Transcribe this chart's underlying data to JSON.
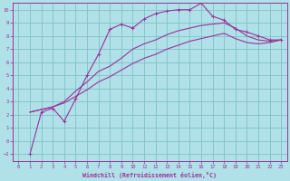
{
  "bg_color": "#b0e0e8",
  "grid_color": "#80c0c8",
  "line_color": "#993399",
  "xlabel": "Windchill (Refroidissement éolien,°C)",
  "xlim": [
    -0.5,
    23.5
  ],
  "ylim": [
    -1.5,
    10.5
  ],
  "xticks": [
    0,
    1,
    2,
    3,
    4,
    5,
    6,
    7,
    8,
    9,
    10,
    11,
    12,
    13,
    14,
    15,
    16,
    17,
    18,
    19,
    20,
    21,
    22,
    23
  ],
  "yticks": [
    -1,
    0,
    1,
    2,
    3,
    4,
    5,
    6,
    7,
    8,
    9,
    10
  ],
  "line1_x": [
    1,
    2,
    3,
    4,
    5,
    6,
    7,
    8,
    9,
    10,
    11,
    12,
    13,
    14,
    15,
    16,
    17,
    18,
    19,
    20,
    21,
    22,
    23
  ],
  "line1_y": [
    -1.0,
    2.2,
    2.5,
    1.5,
    3.2,
    5.0,
    6.6,
    8.5,
    8.9,
    8.6,
    9.3,
    9.7,
    9.9,
    10.0,
    10.0,
    10.5,
    9.5,
    9.2,
    8.5,
    8.3,
    8.0,
    7.7,
    7.7
  ],
  "line2_x": [
    1,
    2,
    3,
    4,
    5,
    6,
    7,
    8,
    9,
    10,
    11,
    12,
    13,
    14,
    15,
    16,
    17,
    18,
    19,
    20,
    21,
    22,
    23
  ],
  "line2_y": [
    2.2,
    2.4,
    2.6,
    3.0,
    3.8,
    4.5,
    5.3,
    5.7,
    6.3,
    7.0,
    7.4,
    7.7,
    8.1,
    8.4,
    8.6,
    8.8,
    8.9,
    9.0,
    8.6,
    8.0,
    7.7,
    7.6,
    7.7
  ],
  "line3_x": [
    1,
    2,
    3,
    4,
    5,
    6,
    7,
    8,
    9,
    10,
    11,
    12,
    13,
    14,
    15,
    16,
    17,
    18,
    19,
    20,
    21,
    22,
    23
  ],
  "line3_y": [
    2.2,
    2.4,
    2.6,
    2.9,
    3.4,
    3.9,
    4.5,
    4.9,
    5.4,
    5.9,
    6.3,
    6.6,
    7.0,
    7.3,
    7.6,
    7.8,
    8.0,
    8.2,
    7.8,
    7.5,
    7.4,
    7.5,
    7.7
  ]
}
